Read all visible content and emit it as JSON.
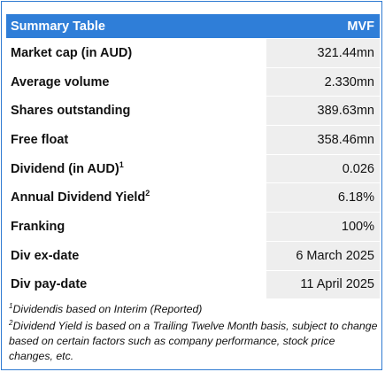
{
  "table": {
    "header": {
      "label": "Summary Table",
      "value": "MVF"
    },
    "rows": [
      {
        "label": "Market cap (in AUD)",
        "sup": "",
        "value": "321.44mn"
      },
      {
        "label": "Average volume",
        "sup": "",
        "value": "2.330mn"
      },
      {
        "label": "Shares outstanding",
        "sup": "",
        "value": "389.63mn"
      },
      {
        "label": "Free float",
        "sup": "",
        "value": "358.46mn"
      },
      {
        "label": "Dividend (in AUD)",
        "sup": "1",
        "value": "0.026"
      },
      {
        "label": "Annual Dividend Yield",
        "sup": "2",
        "value": "6.18%"
      },
      {
        "label": "Franking",
        "sup": "",
        "value": "100%"
      },
      {
        "label": "Div ex-date",
        "sup": "",
        "value": "6 March 2025"
      },
      {
        "label": "Div pay-date",
        "sup": "",
        "value": "11 April 2025"
      }
    ]
  },
  "footnotes": [
    {
      "marker": "1",
      "text": "Dividendis based on Interim (Reported)"
    },
    {
      "marker": "2",
      "text": "Dividend Yield is based on a Trailing Twelve Month basis, subject to change based on certain factors such as company performance, stock price changes, etc."
    }
  ],
  "colors": {
    "header_bg": "#2f7ed8",
    "border": "#2e7ad1",
    "value_cell_bg": "#eeeeee"
  }
}
